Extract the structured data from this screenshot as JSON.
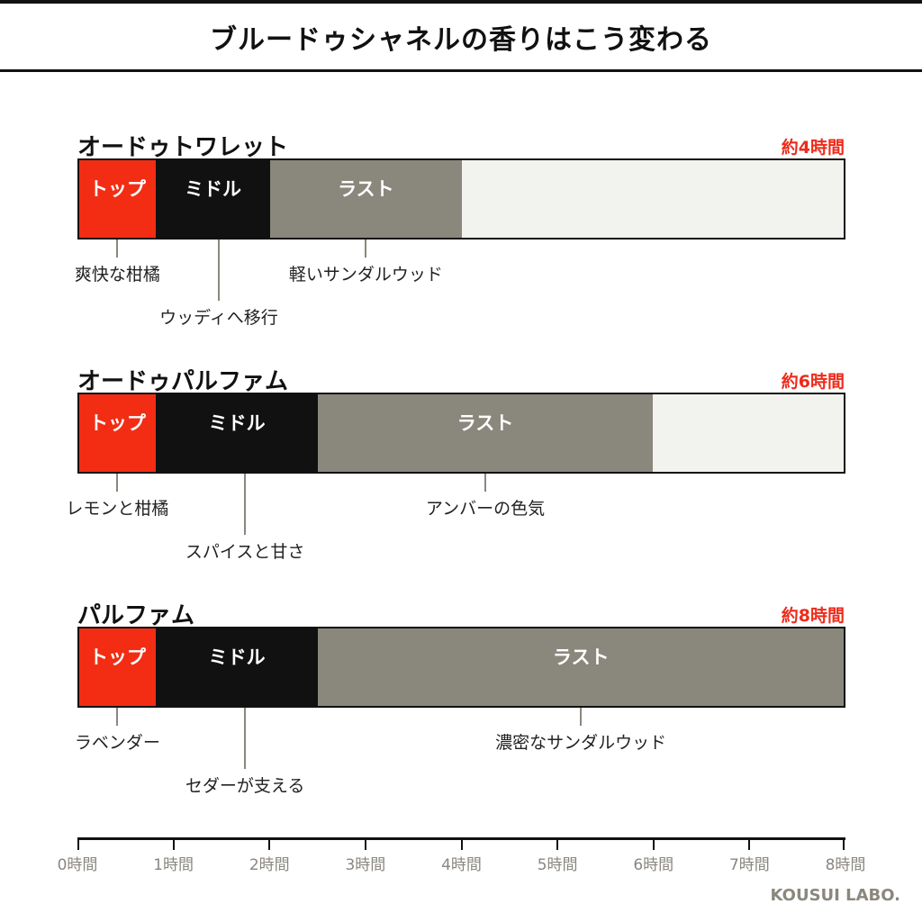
{
  "header": {
    "title": "ブルードゥシャネルの香りはこう変わる"
  },
  "chart_data": {
    "type": "bar",
    "orientation": "horizontal-stacked",
    "x_unit": "時間",
    "xlim": [
      0,
      8
    ],
    "x_ticks": [
      "0時間",
      "1時間",
      "2時間",
      "3時間",
      "4時間",
      "5時間",
      "6時間",
      "7時間",
      "8時間"
    ],
    "colors": {
      "top": "#f22d14",
      "middle": "#111111",
      "last": "#8a877d",
      "empty": "#f2f2ee",
      "accent": "#ee2b1b"
    },
    "series": [
      {
        "name": "オードゥトワレット",
        "duration_label": "約4時間",
        "segments": [
          {
            "label": "トップ",
            "start": 0,
            "end": 0.8
          },
          {
            "label": "ミドル",
            "start": 0.8,
            "end": 2.0
          },
          {
            "label": "ラスト",
            "start": 2.0,
            "end": 4.0
          }
        ],
        "notes": [
          "爽快な柑橘",
          "ウッディへ移行",
          "軽いサンダルウッド"
        ]
      },
      {
        "name": "オードゥパルファム",
        "duration_label": "約6時間",
        "segments": [
          {
            "label": "トップ",
            "start": 0,
            "end": 0.8
          },
          {
            "label": "ミドル",
            "start": 0.8,
            "end": 2.5
          },
          {
            "label": "ラスト",
            "start": 2.5,
            "end": 6.0
          }
        ],
        "notes": [
          "レモンと柑橘",
          "スパイスと甘さ",
          "アンバーの色気"
        ]
      },
      {
        "name": "パルファム",
        "duration_label": "約8時間",
        "segments": [
          {
            "label": "トップ",
            "start": 0,
            "end": 0.8
          },
          {
            "label": "ミドル",
            "start": 0.8,
            "end": 2.5
          },
          {
            "label": "ラスト",
            "start": 2.5,
            "end": 8.0
          }
        ],
        "notes": [
          "ラベンダー",
          "セダーが支える",
          "濃密なサンダルウッド"
        ]
      }
    ]
  },
  "footer": {
    "brand": "KOUSUI LABO."
  }
}
